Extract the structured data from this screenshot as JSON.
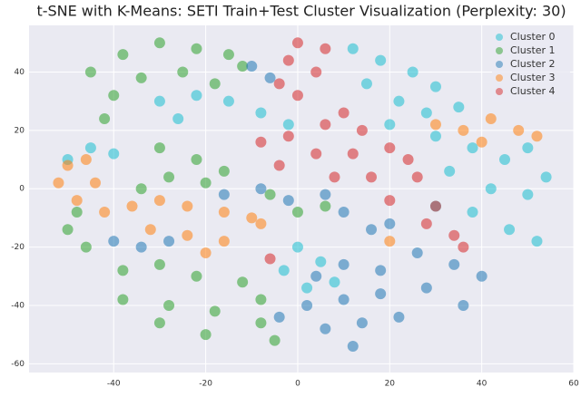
{
  "chart_data": {
    "type": "scatter",
    "title": "t-SNE with K-Means: SETI Train+Test Cluster Visualization (Perplexity: 30)",
    "xlim": [
      -58.4,
      60
    ],
    "ylim": [
      -63,
      56
    ],
    "xticks": [
      -40,
      -20,
      0,
      20,
      40,
      60
    ],
    "yticks": [
      -60,
      -40,
      -20,
      0,
      20,
      40
    ],
    "grid": true,
    "legend": "upper right",
    "series": [
      {
        "name": "Cluster 0",
        "color": "#17becf",
        "x": [
          12,
          18,
          25,
          30,
          15,
          22,
          28,
          35,
          20,
          30,
          38,
          45,
          50,
          33,
          42,
          50,
          54,
          38,
          46,
          52,
          30,
          -30,
          -22,
          -15,
          -8,
          -2,
          -26,
          -45,
          -50,
          -40,
          0,
          5,
          -3,
          8,
          2
        ],
        "y": [
          48,
          44,
          40,
          35,
          36,
          30,
          26,
          28,
          22,
          18,
          14,
          10,
          14,
          6,
          0,
          -2,
          4,
          -8,
          -14,
          -18,
          -6,
          30,
          32,
          30,
          26,
          22,
          24,
          14,
          10,
          12,
          -20,
          -25,
          -28,
          -32,
          -34
        ]
      },
      {
        "name": "Cluster 1",
        "color": "#2ca02c",
        "x": [
          -45,
          -38,
          -30,
          -22,
          -15,
          -40,
          -34,
          -25,
          -18,
          -12,
          -42,
          -30,
          -22,
          -16,
          -28,
          -20,
          -34,
          -50,
          -46,
          -48,
          -38,
          -30,
          -22,
          -12,
          -38,
          -28,
          -18,
          -8,
          -30,
          -20,
          -8,
          -5,
          0,
          6,
          -6
        ],
        "y": [
          40,
          46,
          50,
          48,
          46,
          32,
          38,
          40,
          36,
          42,
          24,
          14,
          10,
          6,
          4,
          2,
          0,
          -14,
          -20,
          -8,
          -28,
          -26,
          -30,
          -32,
          -38,
          -40,
          -42,
          -38,
          -46,
          -50,
          -46,
          -52,
          -8,
          -6,
          -2
        ]
      },
      {
        "name": "Cluster 2",
        "color": "#1f77b4",
        "x": [
          -10,
          -6,
          -16,
          -8,
          -2,
          6,
          10,
          16,
          20,
          -40,
          -34,
          -28,
          4,
          10,
          18,
          26,
          34,
          40,
          2,
          10,
          18,
          28,
          36,
          6,
          14,
          22,
          12,
          -4
        ],
        "y": [
          42,
          38,
          -2,
          0,
          -4,
          -2,
          -8,
          -14,
          -12,
          -18,
          -20,
          -18,
          -30,
          -26,
          -28,
          -22,
          -26,
          -30,
          -40,
          -38,
          -36,
          -34,
          -40,
          -48,
          -46,
          -44,
          -54,
          -44
        ]
      },
      {
        "name": "Cluster 3",
        "color": "#ff7f0e",
        "x": [
          -50,
          -46,
          -52,
          -44,
          -48,
          -42,
          -36,
          -30,
          -24,
          -16,
          -10,
          -32,
          -24,
          -16,
          -8,
          -20,
          30,
          36,
          42,
          48,
          52,
          40,
          20
        ],
        "y": [
          8,
          10,
          2,
          2,
          -4,
          -8,
          -6,
          -4,
          -6,
          -8,
          -10,
          -14,
          -16,
          -18,
          -12,
          -22,
          22,
          20,
          24,
          20,
          18,
          16,
          -18
        ]
      },
      {
        "name": "Cluster 4",
        "color": "#d62728",
        "x": [
          0,
          6,
          -2,
          4,
          -4,
          0,
          -8,
          -2,
          6,
          10,
          14,
          4,
          12,
          20,
          24,
          -4,
          8,
          16,
          26,
          20,
          30,
          28,
          34,
          36,
          -6
        ],
        "y": [
          50,
          48,
          44,
          40,
          36,
          32,
          16,
          18,
          22,
          26,
          20,
          12,
          12,
          14,
          10,
          8,
          4,
          4,
          4,
          -4,
          -6,
          -12,
          -16,
          -20,
          -24
        ]
      }
    ]
  }
}
